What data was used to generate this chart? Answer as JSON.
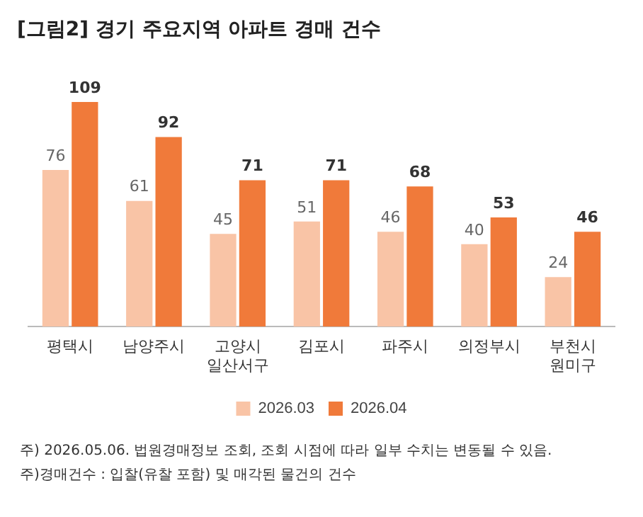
{
  "chart_data": {
    "type": "bar",
    "title": "[그림2] 경기 주요지역 아파트 경매 건수",
    "categories": [
      "평택시",
      "남양주시",
      "고양시\n일산서구",
      "김포시",
      "파주시",
      "의정부시",
      "부천시\n원미구"
    ],
    "series": [
      {
        "name": "2026.03",
        "color": "#f9c4a6",
        "values": [
          76,
          61,
          45,
          51,
          46,
          40,
          24
        ]
      },
      {
        "name": "2026.04",
        "color": "#f07a3a",
        "values": [
          109,
          92,
          71,
          71,
          68,
          53,
          46
        ]
      }
    ],
    "tick_labels": "x",
    "data_labels": true,
    "legend": "bottom",
    "grid": false,
    "annotations": [
      "주) 2026.05.06. 법원경매정보 조회, 조회 시점에 따라 일부 수치는 변동될 수 있음.",
      "주)경매건수 : 입찰(유찰 포함) 및 매각된 물건의 건수"
    ]
  }
}
